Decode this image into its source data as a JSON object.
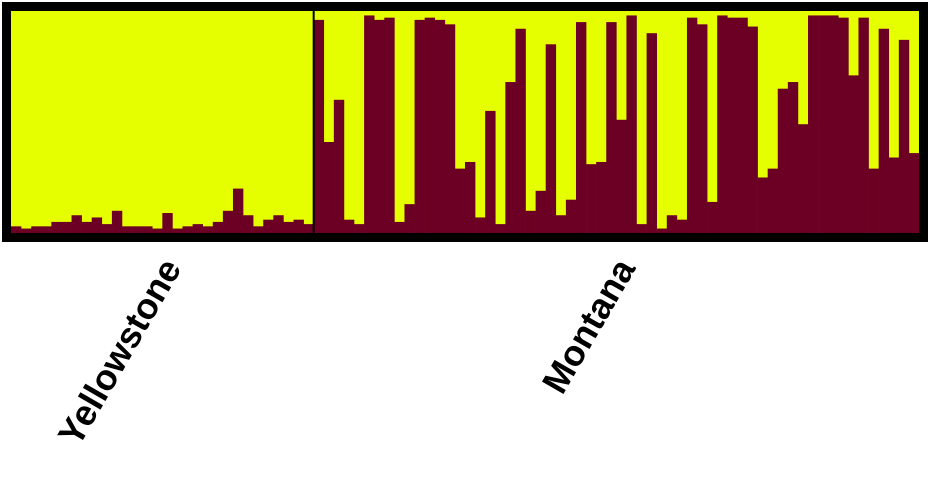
{
  "chart_data": {
    "type": "bar",
    "stacked": true,
    "normalized": true,
    "legend": "none",
    "grid": false,
    "ylim": [
      0,
      1
    ],
    "colors": {
      "cluster_1": "#6b0024",
      "cluster_2": "#e6ff00",
      "frame": "#000000"
    },
    "groups": [
      {
        "label": "Yellowstone",
        "values": [
          0.03,
          0.02,
          0.03,
          0.03,
          0.05,
          0.05,
          0.08,
          0.05,
          0.07,
          0.04,
          0.1,
          0.03,
          0.03,
          0.03,
          0.02,
          0.09,
          0.02,
          0.03,
          0.04,
          0.03,
          0.05,
          0.1,
          0.2,
          0.08,
          0.03,
          0.06,
          0.08,
          0.05,
          0.06,
          0.04
        ]
      },
      {
        "label": "Montana",
        "values": [
          0.96,
          0.41,
          0.6,
          0.06,
          0.04,
          0.98,
          0.96,
          0.97,
          0.05,
          0.13,
          0.96,
          0.97,
          0.96,
          0.94,
          0.29,
          0.32,
          0.07,
          0.55,
          0.04,
          0.68,
          0.92,
          0.1,
          0.19,
          0.85,
          0.08,
          0.15,
          0.95,
          0.31,
          0.32,
          0.95,
          0.51,
          0.98,
          0.04,
          0.9,
          0.02,
          0.08,
          0.06,
          0.97,
          0.94,
          0.14,
          0.98,
          0.97,
          0.97,
          0.93,
          0.25,
          0.29,
          0.65,
          0.68,
          0.49,
          0.98,
          0.98,
          0.98,
          0.97,
          0.71,
          0.97,
          0.29,
          0.92,
          0.34,
          0.87,
          0.36
        ]
      }
    ]
  }
}
